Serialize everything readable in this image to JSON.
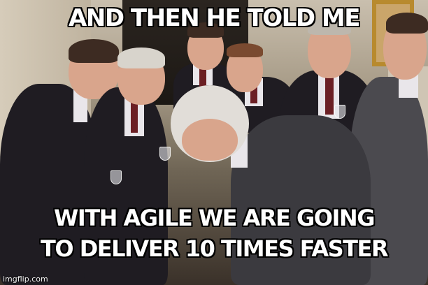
{
  "meme": {
    "top_text": "AND THEN HE TOLD ME",
    "bottom_text_line1": "WITH AGILE WE ARE GOING",
    "bottom_text_line2": "TO DELIVER 10 TIMES FASTER",
    "watermark": "imgflip.com"
  }
}
